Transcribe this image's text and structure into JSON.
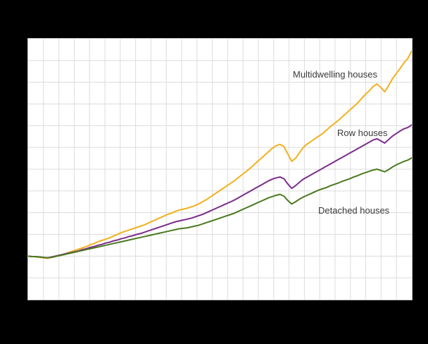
{
  "chart_data": {
    "type": "line",
    "title": "",
    "xlabel": "",
    "ylabel": "",
    "ylim": [
      0,
      600
    ],
    "layout": {
      "grid": true,
      "grid_color": "#dcdcdc",
      "plot_background": "#ffffff",
      "page_background": "#000000",
      "x_gridlines": 25,
      "y_step": 50,
      "legend_position": "inline-labels"
    },
    "series": [
      {
        "name": "Multidwelling  houses",
        "color": "#f2b01e",
        "values": [
          100,
          99,
          98,
          97,
          96,
          95,
          97,
          99,
          102,
          104,
          107,
          110,
          113,
          116,
          119,
          122,
          126,
          129,
          133,
          136,
          139,
          142,
          146,
          150,
          154,
          157,
          160,
          163,
          166,
          169,
          172,
          176,
          180,
          184,
          188,
          192,
          196,
          199,
          203,
          206,
          208,
          210,
          213,
          216,
          220,
          225,
          230,
          236,
          242,
          248,
          254,
          260,
          266,
          272,
          279,
          286,
          293,
          300,
          308,
          316,
          324,
          332,
          340,
          348,
          354,
          357,
          352,
          335,
          318,
          325,
          338,
          350,
          358,
          364,
          370,
          376,
          382,
          390,
          398,
          405,
          412,
          420,
          428,
          436,
          444,
          452,
          462,
          472,
          480,
          490,
          496,
          488,
          478,
          492,
          508,
          520,
          532,
          545,
          555,
          572
        ]
      },
      {
        "name": "Row houses",
        "color": "#7b2d8b",
        "values": [
          100,
          99,
          99,
          98,
          97,
          96,
          98,
          100,
          102,
          104,
          106,
          108,
          110,
          112,
          115,
          117,
          120,
          122,
          125,
          127,
          130,
          132,
          135,
          137,
          140,
          142,
          145,
          147,
          150,
          152,
          155,
          158,
          161,
          164,
          167,
          170,
          173,
          176,
          179,
          181,
          183,
          185,
          187,
          190,
          193,
          196,
          200,
          204,
          208,
          212,
          216,
          220,
          224,
          228,
          233,
          238,
          243,
          248,
          253,
          258,
          263,
          268,
          273,
          277,
          280,
          282,
          278,
          266,
          256,
          262,
          270,
          277,
          282,
          287,
          292,
          297,
          302,
          307,
          312,
          317,
          322,
          327,
          332,
          337,
          342,
          347,
          352,
          357,
          362,
          367,
          370,
          365,
          360,
          368,
          376,
          382,
          388,
          393,
          396,
          402
        ]
      },
      {
        "name": "Detached houses",
        "color": "#4b7a1f",
        "values": [
          100,
          99,
          99,
          98,
          97,
          96,
          97,
          99,
          101,
          103,
          105,
          107,
          109,
          111,
          113,
          115,
          117,
          119,
          121,
          123,
          125,
          127,
          129,
          131,
          133,
          135,
          137,
          139,
          141,
          143,
          145,
          147,
          149,
          151,
          153,
          155,
          157,
          159,
          161,
          163,
          164,
          165,
          167,
          169,
          171,
          174,
          177,
          180,
          183,
          186,
          189,
          192,
          195,
          198,
          202,
          206,
          210,
          214,
          218,
          222,
          226,
          230,
          234,
          237,
          240,
          242,
          238,
          228,
          220,
          225,
          231,
          236,
          240,
          244,
          248,
          252,
          255,
          258,
          262,
          265,
          268,
          272,
          275,
          278,
          282,
          285,
          289,
          292,
          295,
          298,
          300,
          297,
          294,
          299,
          305,
          310,
          314,
          318,
          321,
          326
        ]
      }
    ]
  }
}
